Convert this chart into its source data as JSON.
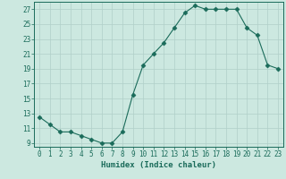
{
  "x": [
    0,
    1,
    2,
    3,
    4,
    5,
    6,
    7,
    8,
    9,
    10,
    11,
    12,
    13,
    14,
    15,
    16,
    17,
    18,
    19,
    20,
    21,
    22,
    23
  ],
  "y": [
    12.5,
    11.5,
    10.5,
    10.5,
    10.0,
    9.5,
    9.0,
    9.0,
    10.5,
    15.5,
    19.5,
    21.0,
    22.5,
    24.5,
    26.5,
    27.5,
    27.0,
    27.0,
    27.0,
    27.0,
    24.5,
    23.5,
    19.5,
    19.0
  ],
  "line_color": "#1a6b5a",
  "marker": "D",
  "marker_size": 2.5,
  "bg_color": "#cce8e0",
  "grid_color": "#b0cfc8",
  "xlabel": "Humidex (Indice chaleur)",
  "xlim": [
    -0.5,
    23.5
  ],
  "ylim": [
    8.5,
    28
  ],
  "yticks": [
    9,
    11,
    13,
    15,
    17,
    19,
    21,
    23,
    25,
    27
  ],
  "xticks": [
    0,
    1,
    2,
    3,
    4,
    5,
    6,
    7,
    8,
    9,
    10,
    11,
    12,
    13,
    14,
    15,
    16,
    17,
    18,
    19,
    20,
    21,
    22,
    23
  ],
  "tick_color": "#1a6b5a",
  "label_fontsize": 6.5,
  "tick_fontsize": 5.5
}
